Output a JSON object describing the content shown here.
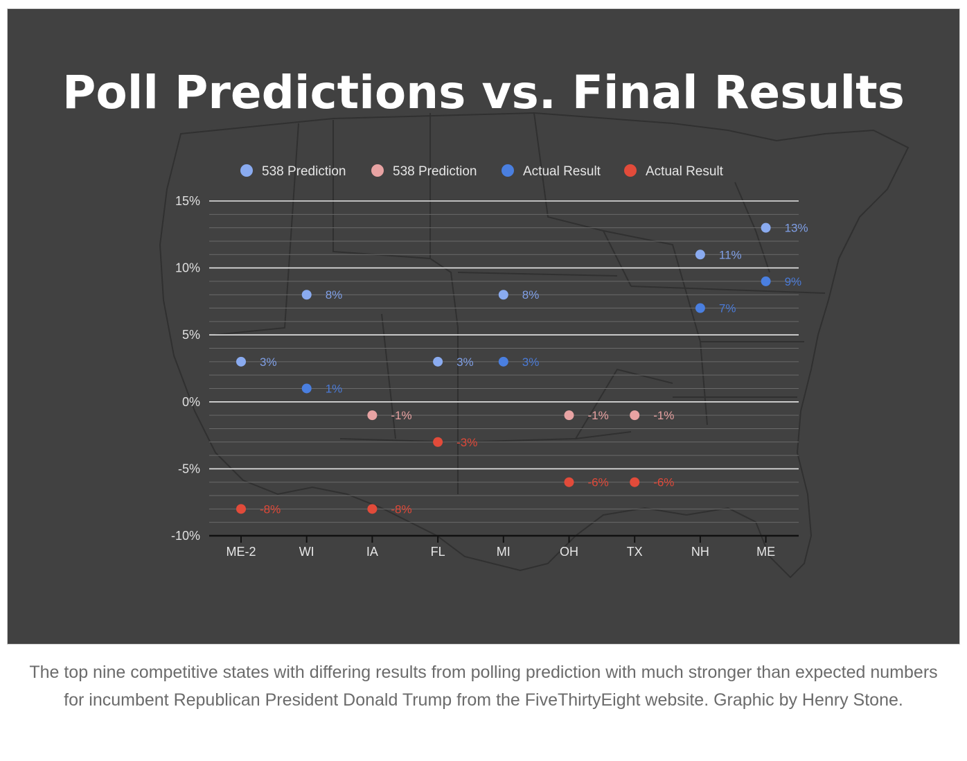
{
  "chart_data": {
    "type": "scatter",
    "title": "Poll Predictions vs. Final Results",
    "categories": [
      "ME-2",
      "WI",
      "IA",
      "FL",
      "MI",
      "OH",
      "TX",
      "NH",
      "ME"
    ],
    "ylim": [
      -10,
      15
    ],
    "yticks": [
      15,
      10,
      5,
      0,
      -5,
      -10
    ],
    "ytick_labels": [
      "15%",
      "10%",
      "5%",
      "0%",
      "-5%",
      "-10%"
    ],
    "xlabel": "",
    "ylabel": "",
    "grid": true,
    "legend_position": "top",
    "series": [
      {
        "name": "538 Prediction",
        "color": "#8aabf0",
        "label_color": "#7f9fe6",
        "points": [
          {
            "cat": "ME-2",
            "value": 3
          },
          {
            "cat": "WI",
            "value": 8
          },
          {
            "cat": "FL",
            "value": 3
          },
          {
            "cat": "MI",
            "value": 8
          },
          {
            "cat": "NH",
            "value": 11
          },
          {
            "cat": "ME",
            "value": 13
          }
        ],
        "labels": [
          "3%",
          "8%",
          "3%",
          "8%",
          "11%",
          "13%"
        ]
      },
      {
        "name": "538 Prediction",
        "color": "#e8a3a3",
        "label_color": "#e6a0a0",
        "points": [
          {
            "cat": "IA",
            "value": -1
          },
          {
            "cat": "OH",
            "value": -1
          },
          {
            "cat": "TX",
            "value": -1
          }
        ],
        "labels": [
          "-1%",
          "-1%",
          "-1%"
        ]
      },
      {
        "name": "Actual Result",
        "color": "#4a7fe0",
        "label_color": "#4a7ad6",
        "points": [
          {
            "cat": "WI",
            "value": 1
          },
          {
            "cat": "MI",
            "value": 3
          },
          {
            "cat": "NH",
            "value": 7
          },
          {
            "cat": "ME",
            "value": 9
          }
        ],
        "labels": [
          "1%",
          "3%",
          "7%",
          "9%"
        ]
      },
      {
        "name": "Actual Result",
        "color": "#e24b3a",
        "label_color": "#e04838",
        "points": [
          {
            "cat": "ME-2",
            "value": -8
          },
          {
            "cat": "IA",
            "value": -8
          },
          {
            "cat": "FL",
            "value": -3
          },
          {
            "cat": "OH",
            "value": -6
          },
          {
            "cat": "TX",
            "value": -6
          }
        ],
        "labels": [
          "-8%",
          "-8%",
          "-3%",
          "-6%",
          "-6%"
        ]
      }
    ]
  },
  "caption": "The top nine competitive states with differing results from polling prediction with much stronger than expected numbers for incumbent Republican President Donald Trump from the FiveThirtyEight website. Graphic by Henry Stone."
}
